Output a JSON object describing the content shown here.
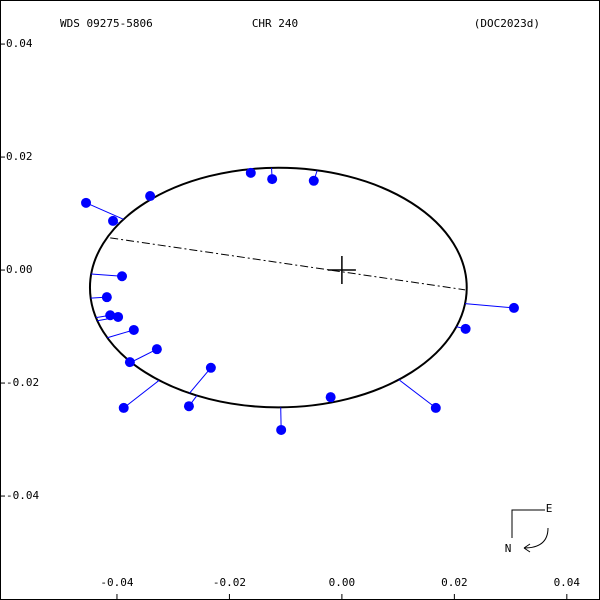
{
  "chart_data": {
    "type": "scatter",
    "header": {
      "left": "WDS 09275-5806",
      "center": "CHR 240",
      "right": "(DOC2023d)"
    },
    "xlim": [
      -0.0608,
      0.0459
    ],
    "ylim": [
      -0.0584,
      0.0478
    ],
    "xticks": [
      -0.04,
      -0.02,
      {
        "value": 0,
        "label": "0.00"
      },
      0.02,
      0.04
    ],
    "yticks": [
      0.04,
      0.02,
      {
        "value": 0,
        "label": "0.00"
      },
      -0.02,
      -0.04
    ],
    "series": [
      {
        "color": "#0000ff",
        "x": [
          -0.0455,
          -0.0407,
          -0.0341,
          -0.0162,
          -0.0124,
          -0.005,
          -0.0391,
          -0.0418,
          -0.0412,
          -0.0398,
          -0.037,
          -0.0329,
          -0.0377,
          -0.0388,
          -0.0272,
          -0.0233,
          -0.0108,
          -0.002,
          0.0167,
          0.022,
          0.0306
        ],
        "values": [
          0.0119,
          0.0087,
          0.0131,
          0.0172,
          0.0161,
          0.0158,
          -0.0011,
          -0.0048,
          -0.008,
          -0.0083,
          -0.0106,
          -0.014,
          -0.0163,
          -0.0244,
          -0.0241,
          -0.0173,
          -0.0283,
          -0.0225,
          -0.0244,
          -0.0104,
          -0.0067
        ]
      }
    ],
    "orbit": {
      "center": [
        -0.0113,
        -0.0031
      ],
      "rx": 0.0335,
      "ry": 0.0212
    },
    "line_of_nodes": {
      "x": [
        -0.0412,
        0.0219
      ],
      "y": [
        0.0057,
        -0.0035
      ]
    },
    "compass": {
      "east": "E",
      "north": "N"
    }
  }
}
